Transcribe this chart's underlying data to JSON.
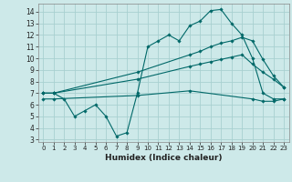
{
  "xlabel": "Humidex (Indice chaleur)",
  "xlim": [
    -0.5,
    23.5
  ],
  "ylim": [
    2.8,
    14.7
  ],
  "yticks": [
    3,
    4,
    5,
    6,
    7,
    8,
    9,
    10,
    11,
    12,
    13,
    14
  ],
  "xticks": [
    0,
    1,
    2,
    3,
    4,
    5,
    6,
    7,
    8,
    9,
    10,
    11,
    12,
    13,
    14,
    15,
    16,
    17,
    18,
    19,
    20,
    21,
    22,
    23
  ],
  "background_color": "#cde9e9",
  "grid_color": "#a8d0d0",
  "line_color": "#006868",
  "line1_x": [
    0,
    1,
    2,
    3,
    4,
    5,
    6,
    7,
    8,
    9,
    10,
    11,
    12,
    13,
    14,
    15,
    16,
    17,
    18,
    19,
    20,
    21,
    22,
    23
  ],
  "line1_y": [
    7.0,
    7.0,
    6.5,
    5.0,
    5.5,
    6.0,
    5.0,
    3.3,
    3.6,
    7.0,
    11.0,
    11.5,
    12.0,
    11.5,
    12.8,
    13.2,
    14.1,
    14.2,
    13.0,
    12.0,
    10.0,
    7.0,
    6.5,
    6.5
  ],
  "line2_x": [
    0,
    1,
    9,
    14,
    15,
    16,
    17,
    18,
    19,
    20,
    21,
    22,
    23
  ],
  "line2_y": [
    7.0,
    7.0,
    8.8,
    10.3,
    10.6,
    11.0,
    11.3,
    11.5,
    11.8,
    11.5,
    9.9,
    8.5,
    7.5
  ],
  "line3_x": [
    0,
    1,
    9,
    14,
    15,
    16,
    17,
    18,
    19,
    20,
    21,
    22,
    23
  ],
  "line3_y": [
    7.0,
    7.0,
    8.2,
    9.3,
    9.5,
    9.7,
    9.9,
    10.1,
    10.3,
    9.5,
    8.8,
    8.2,
    7.5
  ],
  "line4_x": [
    0,
    1,
    9,
    14,
    20,
    21,
    22,
    23
  ],
  "line4_y": [
    6.5,
    6.5,
    6.8,
    7.2,
    6.5,
    6.3,
    6.3,
    6.5
  ]
}
